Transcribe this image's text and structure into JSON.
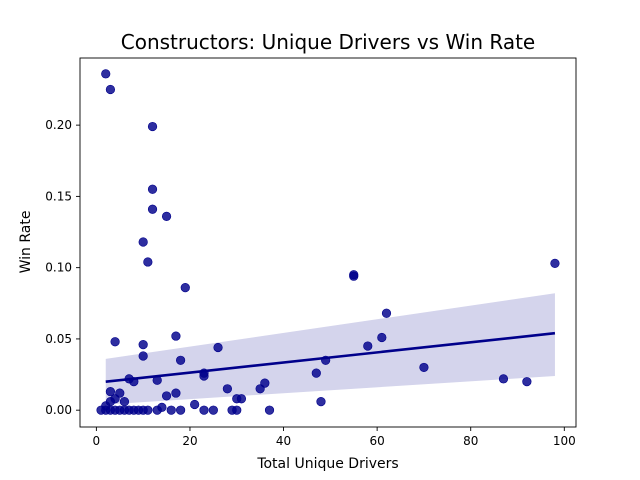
{
  "chart_data": {
    "type": "scatter",
    "title": "Constructors: Unique Drivers vs Win Rate",
    "xlabel": "Total Unique Drivers",
    "ylabel": "Win Rate",
    "xlim": [
      -3.5,
      102.5
    ],
    "ylim": [
      -0.0118,
      0.2471
    ],
    "xticks": [
      0,
      20,
      40,
      60,
      80,
      100
    ],
    "yticks": [
      0.0,
      0.05,
      0.1,
      0.15,
      0.2
    ],
    "ytick_labels": [
      "0.00",
      "0.05",
      "0.10",
      "0.15",
      "0.20"
    ],
    "grid": false,
    "legend": "none",
    "colors": {
      "points": "#00008b",
      "line": "#00008b",
      "band": "#d4d4ec"
    },
    "points": [
      {
        "x": 2,
        "y": 0.236
      },
      {
        "x": 3,
        "y": 0.225
      },
      {
        "x": 12,
        "y": 0.199
      },
      {
        "x": 12,
        "y": 0.155
      },
      {
        "x": 12,
        "y": 0.141
      },
      {
        "x": 15,
        "y": 0.136
      },
      {
        "x": 10,
        "y": 0.118
      },
      {
        "x": 11,
        "y": 0.104
      },
      {
        "x": 98,
        "y": 0.103
      },
      {
        "x": 55,
        "y": 0.095
      },
      {
        "x": 55,
        "y": 0.094
      },
      {
        "x": 19,
        "y": 0.086
      },
      {
        "x": 62,
        "y": 0.068
      },
      {
        "x": 17,
        "y": 0.052
      },
      {
        "x": 61,
        "y": 0.051
      },
      {
        "x": 4,
        "y": 0.048
      },
      {
        "x": 10,
        "y": 0.046
      },
      {
        "x": 58,
        "y": 0.045
      },
      {
        "x": 26,
        "y": 0.044
      },
      {
        "x": 10,
        "y": 0.038
      },
      {
        "x": 18,
        "y": 0.035
      },
      {
        "x": 49,
        "y": 0.035
      },
      {
        "x": 70,
        "y": 0.03
      },
      {
        "x": 47,
        "y": 0.026
      },
      {
        "x": 23,
        "y": 0.026
      },
      {
        "x": 23,
        "y": 0.024
      },
      {
        "x": 7,
        "y": 0.022
      },
      {
        "x": 13,
        "y": 0.021
      },
      {
        "x": 87,
        "y": 0.022
      },
      {
        "x": 8,
        "y": 0.02
      },
      {
        "x": 92,
        "y": 0.02
      },
      {
        "x": 36,
        "y": 0.019
      },
      {
        "x": 28,
        "y": 0.015
      },
      {
        "x": 35,
        "y": 0.015
      },
      {
        "x": 3,
        "y": 0.013
      },
      {
        "x": 5,
        "y": 0.012
      },
      {
        "x": 17,
        "y": 0.012
      },
      {
        "x": 15,
        "y": 0.01
      },
      {
        "x": 30,
        "y": 0.008
      },
      {
        "x": 31,
        "y": 0.008
      },
      {
        "x": 4,
        "y": 0.008
      },
      {
        "x": 3,
        "y": 0.006
      },
      {
        "x": 6,
        "y": 0.006
      },
      {
        "x": 48,
        "y": 0.006
      },
      {
        "x": 21,
        "y": 0.004
      },
      {
        "x": 2,
        "y": 0.003
      },
      {
        "x": 14,
        "y": 0.002
      },
      {
        "x": 1,
        "y": 0
      },
      {
        "x": 2,
        "y": 0
      },
      {
        "x": 3,
        "y": 0
      },
      {
        "x": 4,
        "y": 0
      },
      {
        "x": 5,
        "y": 0
      },
      {
        "x": 6,
        "y": 0
      },
      {
        "x": 7,
        "y": 0
      },
      {
        "x": 8,
        "y": 0
      },
      {
        "x": 9,
        "y": 0
      },
      {
        "x": 10,
        "y": 0
      },
      {
        "x": 11,
        "y": 0
      },
      {
        "x": 13,
        "y": 0
      },
      {
        "x": 16,
        "y": 0
      },
      {
        "x": 18,
        "y": 0
      },
      {
        "x": 23,
        "y": 0
      },
      {
        "x": 25,
        "y": 0
      },
      {
        "x": 29,
        "y": 0
      },
      {
        "x": 30,
        "y": 0
      },
      {
        "x": 37,
        "y": 0
      }
    ],
    "regression": {
      "x": [
        2,
        98
      ],
      "y": [
        0.02,
        0.054
      ],
      "ci_lower": [
        0.004,
        0.024
      ],
      "ci_upper": [
        0.036,
        0.082
      ]
    }
  }
}
